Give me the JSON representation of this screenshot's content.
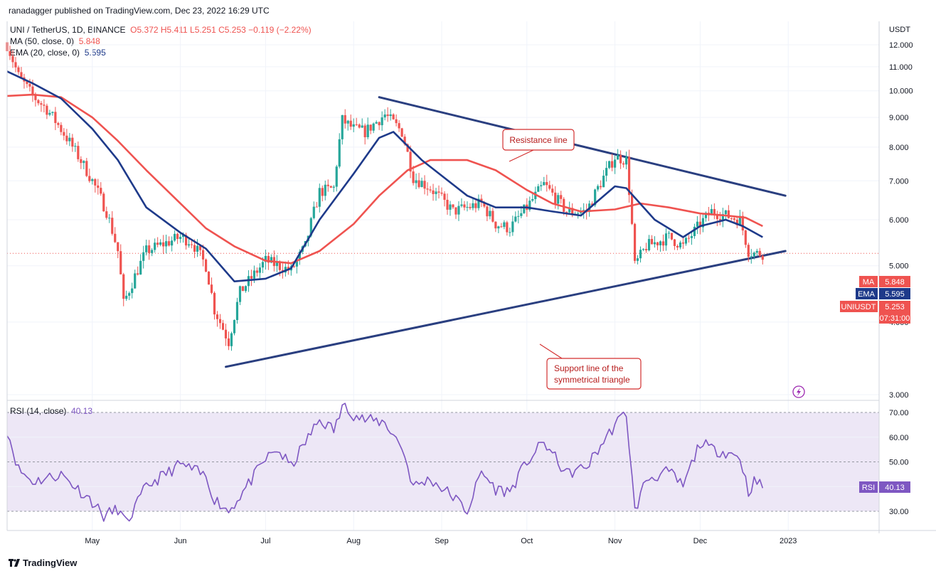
{
  "header": {
    "publisher_line": "ranadagger published on TradingView.com, Dec 23, 2022 16:29 UTC"
  },
  "legend": {
    "symbol": "UNI / TetherUS, 1D, BINANCE",
    "open": "O5.372",
    "high": "H5.411",
    "low": "L5.251",
    "close": "C5.253",
    "change": "−0.119 (−2.22%)",
    "ma_label": "MA (50, close, 0)",
    "ma_value": "5.848",
    "ema_label": "EMA (20, close, 0)",
    "ema_value": "5.595"
  },
  "rsi_legend": {
    "label": "RSI (14, close)",
    "value": "40.13"
  },
  "annotations": {
    "resistance": "Resistance line",
    "support_line1": "Support line of the",
    "support_line2": "symmetrical triangle"
  },
  "badges": {
    "ma_tag": "MA",
    "ma_val": "5.848",
    "ema_tag": "EMA",
    "ema_val": "5.595",
    "sym_tag": "UNIUSDT",
    "sym_val": "5.253",
    "countdown": "07:31:00",
    "rsi_tag": "RSI",
    "rsi_val": "40.13"
  },
  "footer": {
    "brand": "TradingView"
  },
  "colors": {
    "up": "#26a69a",
    "down": "#ef5350",
    "ma": "#ef5350",
    "ema": "#1e3a8a",
    "trendline": "#2a3f80",
    "rsi": "#7e57c2",
    "rsi_band": "#ede7f6"
  },
  "chart_data": [
    {
      "type": "line",
      "title": "UNI / TetherUS, 1D, BINANCE",
      "ylabel": "USDT",
      "y_scale": "log",
      "ylim": [
        3.0,
        12.6
      ],
      "y_ticks": [
        3.0,
        4.0,
        5.0,
        6.0,
        7.0,
        8.0,
        9.0,
        10.0,
        11.0,
        12.0
      ],
      "y_tick_labels": [
        "3.000",
        "4.000",
        "5.000",
        "6.000",
        "7.000",
        "8.000",
        "9.000",
        "10.000",
        "11.000",
        "12.000"
      ],
      "x_axis_labels": [
        {
          "label": "May",
          "date": "2022-05-01"
        },
        {
          "label": "Jun",
          "date": "2022-06-01"
        },
        {
          "label": "Jul",
          "date": "2022-07-01"
        },
        {
          "label": "Aug",
          "date": "2022-08-01"
        },
        {
          "label": "Sep",
          "date": "2022-09-01"
        },
        {
          "label": "Oct",
          "date": "2022-10-01"
        },
        {
          "label": "Nov",
          "date": "2022-11-01"
        },
        {
          "label": "Dec",
          "date": "2022-12-01"
        },
        {
          "label": "2023",
          "date": "2023-01-01"
        }
      ],
      "series": [
        {
          "name": "MA (50, close, 0)",
          "points": [
            [
              "2022-04-01",
              9.8
            ],
            [
              "2022-04-10",
              9.85
            ],
            [
              "2022-04-20",
              9.75
            ],
            [
              "2022-05-01",
              9.0
            ],
            [
              "2022-05-10",
              8.2
            ],
            [
              "2022-05-20",
              7.3
            ],
            [
              "2022-06-01",
              6.4
            ],
            [
              "2022-06-10",
              5.8
            ],
            [
              "2022-06-20",
              5.4
            ],
            [
              "2022-07-01",
              5.1
            ],
            [
              "2022-07-10",
              5.05
            ],
            [
              "2022-07-20",
              5.3
            ],
            [
              "2022-08-01",
              5.9
            ],
            [
              "2022-08-10",
              6.6
            ],
            [
              "2022-08-20",
              7.3
            ],
            [
              "2022-08-28",
              7.6
            ],
            [
              "2022-09-10",
              7.6
            ],
            [
              "2022-09-20",
              7.3
            ],
            [
              "2022-10-01",
              6.75
            ],
            [
              "2022-10-10",
              6.4
            ],
            [
              "2022-10-20",
              6.2
            ],
            [
              "2022-11-01",
              6.25
            ],
            [
              "2022-11-10",
              6.4
            ],
            [
              "2022-11-20",
              6.3
            ],
            [
              "2022-12-01",
              6.15
            ],
            [
              "2022-12-10",
              6.1
            ],
            [
              "2022-12-17",
              6.05
            ],
            [
              "2022-12-23",
              5.85
            ]
          ]
        },
        {
          "name": "EMA (20, close, 0)",
          "points": [
            [
              "2022-04-01",
              10.8
            ],
            [
              "2022-04-10",
              10.3
            ],
            [
              "2022-04-20",
              9.7
            ],
            [
              "2022-05-01",
              8.6
            ],
            [
              "2022-05-10",
              7.6
            ],
            [
              "2022-05-20",
              6.3
            ],
            [
              "2022-06-01",
              5.7
            ],
            [
              "2022-06-10",
              5.35
            ],
            [
              "2022-06-20",
              4.7
            ],
            [
              "2022-07-01",
              4.75
            ],
            [
              "2022-07-10",
              4.95
            ],
            [
              "2022-07-20",
              6.0
            ],
            [
              "2022-08-01",
              7.2
            ],
            [
              "2022-08-10",
              8.3
            ],
            [
              "2022-08-15",
              8.5
            ],
            [
              "2022-08-25",
              7.6
            ],
            [
              "2022-09-10",
              6.6
            ],
            [
              "2022-09-20",
              6.3
            ],
            [
              "2022-10-01",
              6.3
            ],
            [
              "2022-10-10",
              6.2
            ],
            [
              "2022-10-20",
              6.1
            ],
            [
              "2022-11-01",
              6.85
            ],
            [
              "2022-11-05",
              6.8
            ],
            [
              "2022-11-15",
              6.0
            ],
            [
              "2022-11-25",
              5.6
            ],
            [
              "2022-12-01",
              5.85
            ],
            [
              "2022-12-10",
              6.0
            ],
            [
              "2022-12-16",
              5.85
            ],
            [
              "2022-12-23",
              5.6
            ]
          ]
        },
        {
          "name": "UNIUSDT (close)",
          "points": [
            [
              "2022-04-01",
              12.0
            ],
            [
              "2022-04-05",
              10.6
            ],
            [
              "2022-04-10",
              9.8
            ],
            [
              "2022-04-15",
              9.3
            ],
            [
              "2022-04-22",
              8.3
            ],
            [
              "2022-05-01",
              7.0
            ],
            [
              "2022-05-06",
              6.2
            ],
            [
              "2022-05-10",
              5.3
            ],
            [
              "2022-05-12",
              4.3
            ],
            [
              "2022-05-20",
              5.3
            ],
            [
              "2022-06-01",
              5.6
            ],
            [
              "2022-06-05",
              5.5
            ],
            [
              "2022-06-10",
              5.0
            ],
            [
              "2022-06-13",
              4.2
            ],
            [
              "2022-06-18",
              3.7
            ],
            [
              "2022-06-22",
              4.5
            ],
            [
              "2022-07-01",
              5.1
            ],
            [
              "2022-07-10",
              4.9
            ],
            [
              "2022-07-15",
              5.4
            ],
            [
              "2022-07-20",
              6.7
            ],
            [
              "2022-07-25",
              6.8
            ],
            [
              "2022-07-28",
              8.9
            ],
            [
              "2022-08-01",
              8.6
            ],
            [
              "2022-08-05",
              8.5
            ],
            [
              "2022-08-12",
              9.1
            ],
            [
              "2022-08-18",
              8.5
            ],
            [
              "2022-08-22",
              7.1
            ],
            [
              "2022-08-28",
              6.8
            ],
            [
              "2022-09-05",
              6.2
            ],
            [
              "2022-09-15",
              6.4
            ],
            [
              "2022-09-20",
              5.9
            ],
            [
              "2022-09-25",
              5.8
            ],
            [
              "2022-10-01",
              6.3
            ],
            [
              "2022-10-07",
              6.9
            ],
            [
              "2022-10-15",
              6.2
            ],
            [
              "2022-10-22",
              6.2
            ],
            [
              "2022-11-01",
              7.7
            ],
            [
              "2022-11-05",
              7.6
            ],
            [
              "2022-11-08",
              5.0
            ],
            [
              "2022-11-12",
              5.4
            ],
            [
              "2022-11-20",
              5.6
            ],
            [
              "2022-11-25",
              5.4
            ],
            [
              "2022-12-01",
              5.9
            ],
            [
              "2022-12-05",
              6.2
            ],
            [
              "2022-12-10",
              6.1
            ],
            [
              "2022-12-15",
              6.0
            ],
            [
              "2022-12-18",
              5.3
            ],
            [
              "2022-12-20",
              5.25
            ],
            [
              "2022-12-23",
              5.25
            ]
          ]
        }
      ],
      "trendlines": [
        {
          "name": "Resistance line",
          "from": [
            "2022-08-10",
            9.75
          ],
          "to": [
            "2022-12-31",
            6.6
          ]
        },
        {
          "name": "Support line of the symmetrical triangle",
          "from": [
            "2022-06-17",
            3.35
          ],
          "to": [
            "2022-12-31",
            5.3
          ]
        }
      ],
      "current_price": 5.253,
      "grid": true
    },
    {
      "type": "line",
      "title": "RSI (14, close)",
      "ylim": [
        23,
        74
      ],
      "y_ticks": [
        30,
        40,
        50,
        60,
        70
      ],
      "y_tick_labels": [
        "30.00",
        "40.00",
        "50.00",
        "60.00",
        "70.00"
      ],
      "overbought": 70,
      "oversold": 30,
      "series": [
        {
          "name": "RSI (14, close)",
          "points": [
            [
              "2022-04-01",
              63
            ],
            [
              "2022-04-05",
              47
            ],
            [
              "2022-04-10",
              42
            ],
            [
              "2022-04-20",
              45
            ],
            [
              "2022-05-01",
              34
            ],
            [
              "2022-05-05",
              28
            ],
            [
              "2022-05-10",
              31
            ],
            [
              "2022-05-13",
              25
            ],
            [
              "2022-05-20",
              40
            ],
            [
              "2022-06-01",
              49
            ],
            [
              "2022-06-05",
              47
            ],
            [
              "2022-06-10",
              44
            ],
            [
              "2022-06-13",
              35
            ],
            [
              "2022-06-18",
              30
            ],
            [
              "2022-06-25",
              41
            ],
            [
              "2022-07-01",
              51
            ],
            [
              "2022-07-05",
              55
            ],
            [
              "2022-07-10",
              48
            ],
            [
              "2022-07-15",
              58
            ],
            [
              "2022-07-20",
              67
            ],
            [
              "2022-07-25",
              63
            ],
            [
              "2022-07-29",
              74
            ],
            [
              "2022-08-01",
              69
            ],
            [
              "2022-08-05",
              67
            ],
            [
              "2022-08-12",
              66
            ],
            [
              "2022-08-18",
              56
            ],
            [
              "2022-08-22",
              40
            ],
            [
              "2022-08-28",
              43
            ],
            [
              "2022-09-05",
              36
            ],
            [
              "2022-09-10",
              30
            ],
            [
              "2022-09-15",
              46
            ],
            [
              "2022-09-20",
              39
            ],
            [
              "2022-09-25",
              38
            ],
            [
              "2022-10-01",
              50
            ],
            [
              "2022-10-07",
              58
            ],
            [
              "2022-10-15",
              45
            ],
            [
              "2022-10-22",
              48
            ],
            [
              "2022-11-01",
              65
            ],
            [
              "2022-11-05",
              70
            ],
            [
              "2022-11-08",
              30
            ],
            [
              "2022-11-12",
              43
            ],
            [
              "2022-11-20",
              46
            ],
            [
              "2022-11-25",
              40
            ],
            [
              "2022-12-01",
              58
            ],
            [
              "2022-12-05",
              55
            ],
            [
              "2022-12-10",
              54
            ],
            [
              "2022-12-15",
              52
            ],
            [
              "2022-12-18",
              38
            ],
            [
              "2022-12-20",
              42
            ],
            [
              "2022-12-23",
              40.13
            ]
          ]
        }
      ]
    }
  ]
}
